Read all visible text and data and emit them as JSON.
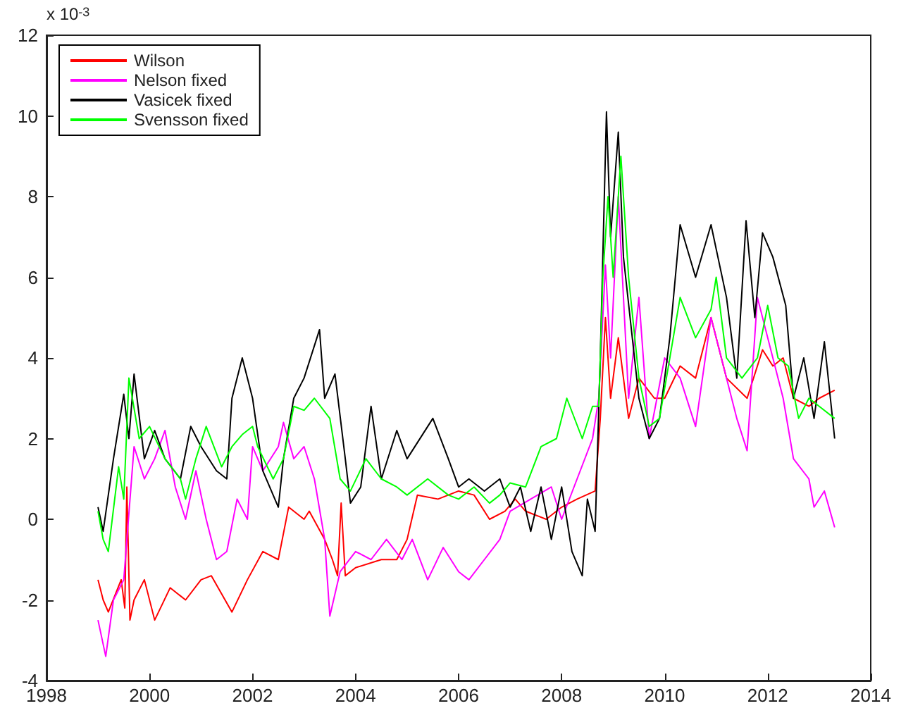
{
  "chart_data": {
    "type": "line",
    "annotations": [
      "x 10$^{-3}$"
    ],
    "xlim": [
      1998,
      2014
    ],
    "xticks": [
      1998,
      2000,
      2002,
      2004,
      2006,
      2008,
      2010,
      2012,
      2014
    ],
    "ylim": [
      -4,
      12
    ],
    "yticks": [
      -4,
      -2,
      0,
      2,
      4,
      6,
      8,
      10,
      12
    ],
    "grid": false,
    "legend": "top left",
    "marker": "none",
    "line_style": "solid",
    "series": [
      {
        "name": "Wilson",
        "color": "#ff0000",
        "x": [
          1999.0,
          1999.1,
          1999.2,
          1999.45,
          1999.52,
          1999.56,
          1999.62,
          1999.7,
          1999.9,
          2000.1,
          2000.4,
          2000.7,
          2001.0,
          2001.2,
          2001.6,
          2001.9,
          2002.2,
          2002.5,
          2002.7,
          2003.0,
          2003.1,
          2003.4,
          2003.55,
          2003.65,
          2003.72,
          2003.8,
          2004.0,
          2004.5,
          2004.8,
          2005.0,
          2005.2,
          2005.6,
          2006.0,
          2006.3,
          2006.6,
          2006.9,
          2007.1,
          2007.3,
          2007.7,
          2008.0,
          2008.3,
          2008.65,
          2008.75,
          2008.85,
          2008.95,
          2009.1,
          2009.3,
          2009.5,
          2009.8,
          2010.0,
          2010.3,
          2010.6,
          2010.9,
          2011.2,
          2011.6,
          2011.9,
          2012.1,
          2012.3,
          2012.5,
          2012.8,
          2013.0,
          2013.3
        ],
        "values": [
          -1.5,
          -2.0,
          -2.3,
          -1.5,
          -2.2,
          0.8,
          -2.5,
          -2.0,
          -1.5,
          -2.5,
          -1.7,
          -2.0,
          -1.5,
          -1.4,
          -2.3,
          -1.5,
          -0.8,
          -1.0,
          0.3,
          0.0,
          0.2,
          -0.5,
          -1.0,
          -1.4,
          0.4,
          -1.4,
          -1.2,
          -1.0,
          -1.0,
          -0.5,
          0.6,
          0.5,
          0.7,
          0.6,
          0.0,
          0.2,
          0.5,
          0.2,
          0.0,
          0.3,
          0.5,
          0.7,
          2.5,
          5.0,
          3.0,
          4.5,
          2.5,
          3.5,
          3.0,
          3.0,
          3.8,
          3.5,
          5.0,
          3.5,
          3.0,
          4.2,
          3.8,
          4.0,
          3.0,
          2.8,
          3.0,
          3.2
        ]
      },
      {
        "name": "Nelson fixed",
        "color": "#ff00ff",
        "x": [
          1999.0,
          1999.15,
          1999.3,
          1999.5,
          1999.7,
          1999.9,
          2000.1,
          2000.3,
          2000.5,
          2000.7,
          2000.9,
          2001.1,
          2001.3,
          2001.5,
          2001.7,
          2001.9,
          2002.0,
          2002.2,
          2002.5,
          2002.6,
          2002.8,
          2003.0,
          2003.2,
          2003.4,
          2003.5,
          2003.7,
          2004.0,
          2004.3,
          2004.6,
          2004.9,
          2005.1,
          2005.4,
          2005.7,
          2006.0,
          2006.2,
          2006.5,
          2006.8,
          2007.0,
          2007.4,
          2007.8,
          2008.0,
          2008.3,
          2008.6,
          2008.72,
          2008.85,
          2008.95,
          2009.1,
          2009.3,
          2009.5,
          2009.7,
          2010.0,
          2010.3,
          2010.6,
          2010.9,
          2011.1,
          2011.4,
          2011.6,
          2011.8,
          2012.0,
          2012.3,
          2012.5,
          2012.8,
          2012.9,
          2013.1,
          2013.3
        ],
        "values": [
          -2.5,
          -3.4,
          -2.0,
          -1.5,
          1.8,
          1.0,
          1.5,
          2.2,
          0.8,
          0.0,
          1.2,
          0.0,
          -1.0,
          -0.8,
          0.5,
          0.0,
          1.8,
          1.2,
          1.8,
          2.4,
          1.5,
          1.8,
          1.0,
          -0.5,
          -2.4,
          -1.3,
          -0.8,
          -1.0,
          -0.5,
          -1.0,
          -0.5,
          -1.5,
          -0.7,
          -1.3,
          -1.5,
          -1.0,
          -0.5,
          0.2,
          0.5,
          0.8,
          0.0,
          1.0,
          2.0,
          3.0,
          6.3,
          4.0,
          8.0,
          3.0,
          5.5,
          2.0,
          4.0,
          3.5,
          2.3,
          5.0,
          4.0,
          2.5,
          1.7,
          5.5,
          4.5,
          3.0,
          1.5,
          1.0,
          0.3,
          0.7,
          -0.2
        ]
      },
      {
        "name": "Vasicek fixed",
        "color": "#000000",
        "x": [
          1999.0,
          1999.1,
          1999.3,
          1999.5,
          1999.6,
          1999.7,
          1999.9,
          2000.1,
          2000.3,
          2000.6,
          2000.8,
          2001.0,
          2001.3,
          2001.5,
          2001.6,
          2001.8,
          2002.0,
          2002.2,
          2002.5,
          2002.6,
          2002.8,
          2003.0,
          2003.3,
          2003.4,
          2003.6,
          2003.8,
          2003.9,
          2004.1,
          2004.3,
          2004.5,
          2004.8,
          2005.0,
          2005.5,
          2005.8,
          2006.0,
          2006.2,
          2006.5,
          2006.8,
          2007.0,
          2007.2,
          2007.4,
          2007.6,
          2007.8,
          2008.0,
          2008.2,
          2008.4,
          2008.5,
          2008.65,
          2008.75,
          2008.87,
          2008.95,
          2009.1,
          2009.2,
          2009.5,
          2009.7,
          2009.9,
          2010.1,
          2010.3,
          2010.6,
          2010.9,
          2011.2,
          2011.4,
          2011.58,
          2011.75,
          2011.9,
          2012.1,
          2012.35,
          2012.5,
          2012.7,
          2012.9,
          2013.1,
          2013.3
        ],
        "values": [
          0.3,
          -0.3,
          1.5,
          3.1,
          2.0,
          3.6,
          1.5,
          2.2,
          1.5,
          1.0,
          2.3,
          1.8,
          1.2,
          1.0,
          3.0,
          4.0,
          3.0,
          1.2,
          0.3,
          1.5,
          3.0,
          3.5,
          4.7,
          3.0,
          3.6,
          1.5,
          0.4,
          0.8,
          2.8,
          1.0,
          2.2,
          1.5,
          2.5,
          1.5,
          0.8,
          1.0,
          0.7,
          1.0,
          0.3,
          0.8,
          -0.3,
          0.8,
          -0.5,
          0.8,
          -0.8,
          -1.4,
          0.5,
          -0.3,
          4.0,
          10.1,
          7.0,
          9.6,
          6.5,
          3.0,
          2.0,
          2.5,
          4.5,
          7.3,
          6.0,
          7.3,
          5.5,
          3.5,
          7.4,
          5.0,
          7.1,
          6.5,
          5.3,
          3.0,
          4.0,
          2.5,
          4.4,
          2.0
        ]
      },
      {
        "name": "Svensson fixed",
        "color": "#00ff00",
        "x": [
          1999.0,
          1999.1,
          1999.2,
          1999.4,
          1999.5,
          1999.6,
          1999.8,
          2000.0,
          2000.3,
          2000.6,
          2000.7,
          2000.9,
          2001.1,
          2001.4,
          2001.6,
          2001.8,
          2002.0,
          2002.1,
          2002.4,
          2002.6,
          2002.8,
          2003.0,
          2003.2,
          2003.5,
          2003.7,
          2003.9,
          2004.2,
          2004.5,
          2004.8,
          2005.0,
          2005.4,
          2005.8,
          2006.0,
          2006.3,
          2006.6,
          2006.8,
          2007.0,
          2007.3,
          2007.6,
          2007.9,
          2008.1,
          2008.4,
          2008.6,
          2008.72,
          2008.8,
          2008.9,
          2009.0,
          2009.15,
          2009.3,
          2009.5,
          2009.7,
          2009.9,
          2010.1,
          2010.3,
          2010.6,
          2010.9,
          2011.0,
          2011.2,
          2011.5,
          2011.8,
          2012.0,
          2012.2,
          2012.4,
          2012.6,
          2012.8,
          2013.0,
          2013.3
        ],
        "values": [
          0.2,
          -0.5,
          -0.8,
          1.3,
          0.5,
          3.5,
          2.0,
          2.3,
          1.5,
          1.0,
          0.5,
          1.5,
          2.3,
          1.3,
          1.8,
          2.1,
          2.3,
          1.8,
          1.0,
          1.5,
          2.8,
          2.7,
          3.0,
          2.5,
          1.0,
          0.7,
          1.5,
          1.0,
          0.8,
          0.6,
          1.0,
          0.6,
          0.5,
          0.8,
          0.4,
          0.6,
          0.9,
          0.8,
          1.8,
          2.0,
          3.0,
          2.0,
          2.8,
          2.8,
          6.0,
          8.0,
          6.0,
          9.0,
          6.0,
          3.5,
          2.3,
          2.5,
          4.0,
          5.5,
          4.5,
          5.2,
          6.0,
          4.0,
          3.5,
          4.0,
          5.3,
          4.0,
          3.8,
          2.5,
          3.0,
          2.8,
          2.5
        ]
      }
    ]
  }
}
